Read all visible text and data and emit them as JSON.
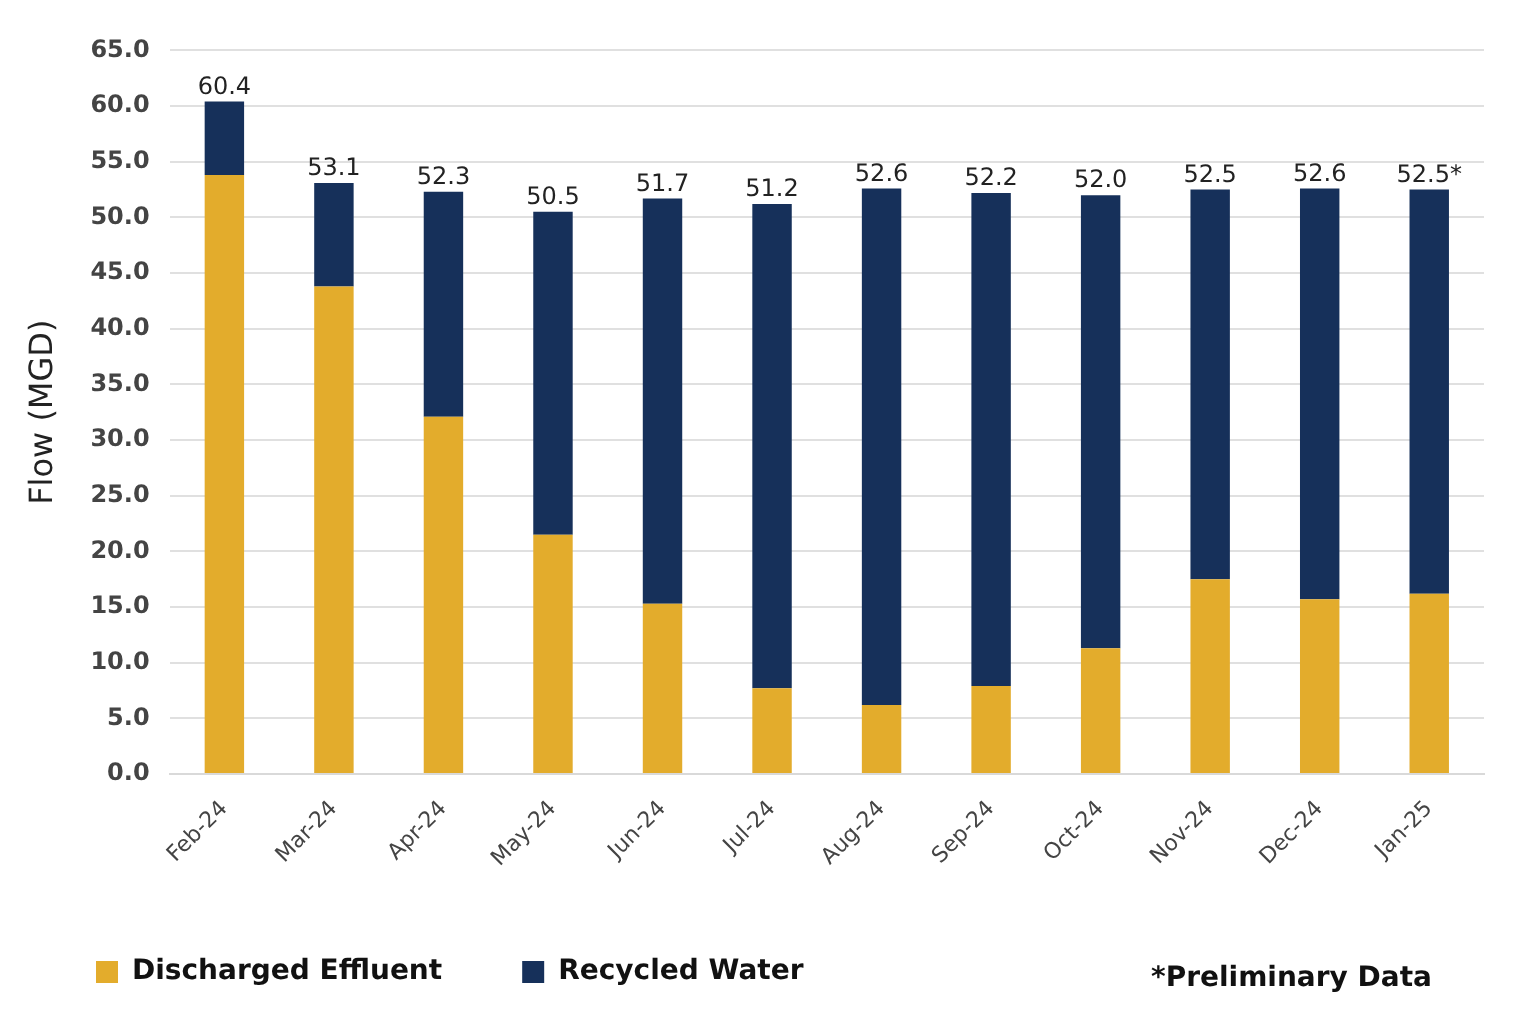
{
  "chart_data": {
    "type": "bar",
    "stacked": true,
    "ylabel": "Flow (MGD)",
    "categories": [
      "Feb-24",
      "Mar-24",
      "Apr-24",
      "May-24",
      "Jun-24",
      "Jul-24",
      "Aug-24",
      "Sep-24",
      "Oct-24",
      "Nov-24",
      "Dec-24",
      "Jan-25"
    ],
    "series": [
      {
        "name": "Discharged Effluent",
        "color": "#e3ac2c",
        "values": [
          53.8,
          43.8,
          32.1,
          21.5,
          15.3,
          7.7,
          6.2,
          7.9,
          11.3,
          17.5,
          15.7,
          16.2
        ]
      },
      {
        "name": "Recycled Water",
        "color": "#16305a",
        "values": [
          6.6,
          9.3,
          20.2,
          29.0,
          36.4,
          43.5,
          46.4,
          44.3,
          40.7,
          35.0,
          36.9,
          36.3
        ]
      }
    ],
    "totals": [
      "60.4",
      "53.1",
      "52.3",
      "50.5",
      "51.7",
      "51.2",
      "52.6",
      "52.2",
      "52.0",
      "52.5",
      "52.6",
      "52.5*"
    ],
    "ylim": [
      0,
      65
    ],
    "yticks": [
      {
        "value": 0,
        "label": "0.0"
      },
      {
        "value": 5,
        "label": "5.0"
      },
      {
        "value": 10,
        "label": "10.0"
      },
      {
        "value": 15,
        "label": "15.0"
      },
      {
        "value": 20,
        "label": "20.0"
      },
      {
        "value": 25,
        "label": "25.0"
      },
      {
        "value": 30,
        "label": "30.0"
      },
      {
        "value": 35,
        "label": "35.0"
      },
      {
        "value": 40,
        "label": "40.0"
      },
      {
        "value": 45,
        "label": "45.0"
      },
      {
        "value": 50,
        "label": "50.0"
      },
      {
        "value": 55,
        "label": "55.0"
      },
      {
        "value": 60,
        "label": "60.0"
      },
      {
        "value": 65,
        "label": "65.0"
      }
    ],
    "grid": "y",
    "legend": "bottom",
    "annotations": [
      "*Preliminary Data"
    ]
  }
}
